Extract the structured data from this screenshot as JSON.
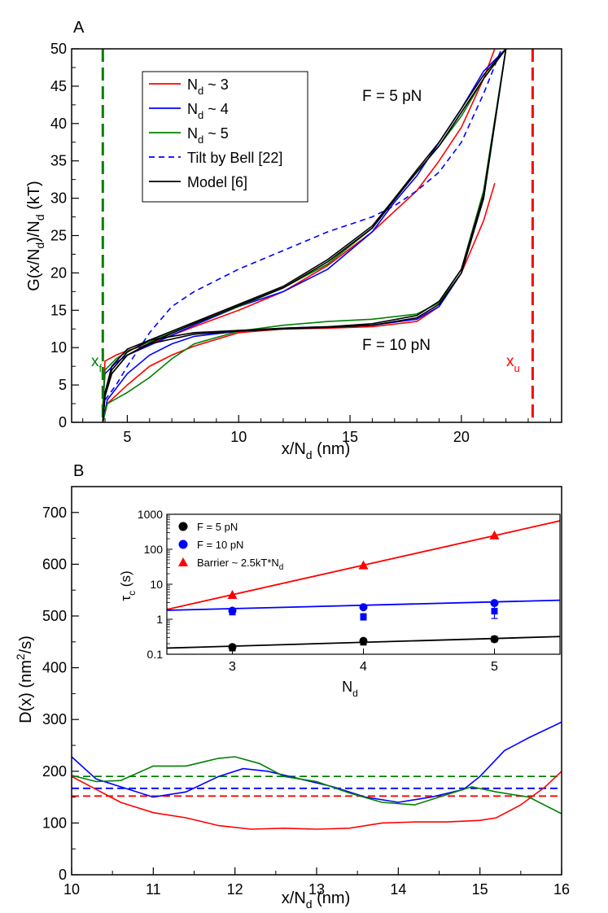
{
  "chart_data": [
    {
      "panel": "A",
      "type": "line",
      "xlabel": "x/N",
      "xlabel_sub": "d",
      "xlabel_unit": "(nm)",
      "ylabel": "G(x/N",
      "ylabel_sub": "d",
      "ylabel_mid": ")/N",
      "ylabel_sub2": "d",
      "ylabel_unit": "(kT)",
      "xlim": [
        2.5,
        24.5
      ],
      "ylim": [
        0,
        50
      ],
      "xticks": [
        5,
        10,
        15,
        20
      ],
      "yticks": [
        0,
        5,
        10,
        15,
        20,
        25,
        30,
        35,
        40,
        45,
        50
      ],
      "legend": [
        {
          "label": "N",
          "sub": "d",
          "suffix": " ~ 3",
          "color": "#ff0000",
          "dash": false
        },
        {
          "label": "N",
          "sub": "d",
          "suffix": " ~ 4",
          "color": "#0000ff",
          "dash": false
        },
        {
          "label": "N",
          "sub": "d",
          "suffix": " ~ 5",
          "color": "#008000",
          "dash": false
        },
        {
          "label": "Tilt by Bell [22]",
          "sub": "",
          "suffix": "",
          "color": "#0000ff",
          "dash": true
        },
        {
          "label": "Model [6]",
          "sub": "",
          "suffix": "",
          "color": "#000000",
          "dash": false
        }
      ],
      "annotations": {
        "f5": "F = 5 pN",
        "f10": "F = 10 pN",
        "xf": "x",
        "xf_sub": "f",
        "xu": "x",
        "xu_sub": "u"
      },
      "vlines": [
        {
          "x": 3.9,
          "color": "#008000"
        },
        {
          "x": 23.2,
          "color": "#ff0000"
        }
      ],
      "series": [
        {
          "name": "F5 Nd~3",
          "color": "#ff0000",
          "dash": false,
          "x": [
            3.9,
            4.0,
            4.5,
            5,
            6,
            8,
            10,
            12,
            14,
            16,
            18,
            19,
            20,
            21,
            21.5
          ],
          "y": [
            2,
            8.2,
            9,
            9.6,
            10.5,
            12.8,
            15,
            17.5,
            21,
            25.5,
            31,
            35,
            39.5,
            46,
            50
          ]
        },
        {
          "name": "F5 Nd~4",
          "color": "#0000ff",
          "dash": false,
          "x": [
            3.9,
            4.0,
            4.5,
            5,
            6,
            8,
            10,
            12,
            14,
            16,
            17,
            18,
            19,
            20,
            21,
            22
          ],
          "y": [
            2,
            6.5,
            8,
            9,
            10.3,
            13,
            15.5,
            17.5,
            20.5,
            25.5,
            29.5,
            33,
            37.5,
            42,
            47,
            50
          ]
        },
        {
          "name": "F5 Nd~5",
          "color": "#008000",
          "dash": false,
          "x": [
            3.9,
            4.0,
            4.5,
            5,
            6,
            8,
            10,
            12,
            14,
            16,
            17,
            18,
            19,
            20,
            21,
            22
          ],
          "y": [
            2,
            7,
            8.5,
            9.5,
            10.8,
            13.2,
            15.5,
            18,
            21.2,
            26,
            30,
            33.5,
            37,
            41,
            46,
            50
          ]
        },
        {
          "name": "F5 Tilt",
          "color": "#0000ff",
          "dash": true,
          "x": [
            4.0,
            4.5,
            5,
            6,
            7,
            8,
            10,
            12,
            14,
            16,
            17,
            18,
            19,
            20,
            21,
            21.8
          ],
          "y": [
            3,
            5,
            7.5,
            12,
            15.5,
            17.5,
            20.5,
            23,
            25.5,
            27.5,
            29,
            31,
            33.5,
            37.5,
            44,
            50
          ]
        },
        {
          "name": "F5 Model a",
          "color": "#000000",
          "dash": false,
          "x": [
            3.9,
            4.0,
            4.3,
            5,
            6,
            8,
            10,
            12,
            14,
            16,
            17,
            18,
            19,
            20,
            21,
            22
          ],
          "y": [
            0,
            3.5,
            6.5,
            9,
            10.6,
            13.2,
            15.6,
            18,
            21.5,
            26,
            29.8,
            33.5,
            37,
            41.5,
            46,
            50
          ]
        },
        {
          "name": "F5 Model b",
          "color": "#000000",
          "dash": false,
          "x": [
            3.9,
            4.0,
            4.3,
            5,
            6,
            8,
            10,
            12,
            14,
            16,
            17,
            18,
            19,
            20,
            21,
            22
          ],
          "y": [
            0,
            4,
            7,
            9.4,
            11,
            13.4,
            15.8,
            18.2,
            21.8,
            26.3,
            30,
            33.8,
            37.5,
            42,
            46.5,
            50
          ]
        },
        {
          "name": "F10 Nd~3",
          "color": "#ff0000",
          "dash": false,
          "x": [
            3.9,
            4.1,
            5,
            6,
            7,
            8,
            10,
            12,
            14,
            16,
            18,
            19,
            20,
            21,
            21.5
          ],
          "y": [
            0,
            2.5,
            5,
            7.5,
            9,
            10.2,
            12,
            12.5,
            12.6,
            12.8,
            13.5,
            15.5,
            20,
            27,
            32
          ]
        },
        {
          "name": "F10 Nd~4",
          "color": "#0000ff",
          "dash": false,
          "x": [
            3.9,
            4.1,
            5,
            6,
            7,
            8,
            10,
            12,
            14,
            16,
            18,
            19,
            20,
            21,
            22
          ],
          "y": [
            0,
            3,
            6.5,
            9,
            10.5,
            11.5,
            12.2,
            12.6,
            12.8,
            13,
            13.8,
            15.5,
            20,
            30,
            50
          ]
        },
        {
          "name": "F10 Nd~5",
          "color": "#008000",
          "dash": false,
          "x": [
            3.9,
            4.1,
            5,
            6,
            7,
            8,
            10,
            12,
            14,
            16,
            18,
            19,
            20,
            21,
            22
          ],
          "y": [
            0,
            2.5,
            4,
            6,
            8.5,
            10.5,
            12.2,
            13,
            13.5,
            13.8,
            14.5,
            16,
            20.5,
            31,
            50
          ]
        },
        {
          "name": "F10 Model a",
          "color": "#000000",
          "dash": false,
          "x": [
            3.9,
            4.0,
            4.3,
            5,
            6,
            8,
            10,
            12,
            14,
            16,
            18,
            19,
            20,
            21,
            22
          ],
          "y": [
            0,
            3.5,
            6.5,
            9,
            10.5,
            11.8,
            12.2,
            12.5,
            12.7,
            13,
            14,
            15.8,
            20,
            30,
            50
          ]
        },
        {
          "name": "F10 Model b",
          "color": "#000000",
          "dash": false,
          "x": [
            3.9,
            4.0,
            4.3,
            5,
            6,
            8,
            10,
            12,
            14,
            16,
            18,
            19,
            20,
            21,
            22
          ],
          "y": [
            0,
            4,
            7.5,
            9.8,
            11,
            12,
            12.3,
            12.6,
            12.8,
            13.2,
            14.3,
            16.2,
            20.5,
            30.5,
            50
          ]
        }
      ]
    },
    {
      "panel": "B",
      "type": "line",
      "xlabel": "x/N",
      "xlabel_sub": "d",
      "xlabel_unit": "(nm)",
      "ylabel": "D(x) (nm",
      "ylabel_sup": "2",
      "ylabel_unit": "/s)",
      "xlim": [
        10,
        16
      ],
      "ylim": [
        0,
        750
      ],
      "xticks": [
        10,
        11,
        12,
        13,
        14,
        15,
        16
      ],
      "yticks": [
        0,
        100,
        200,
        300,
        400,
        500,
        600,
        700
      ],
      "hlines": [
        {
          "y": 190,
          "color": "#008000"
        },
        {
          "y": 167,
          "color": "#0000ff"
        },
        {
          "y": 152,
          "color": "#ff0000"
        }
      ],
      "series": [
        {
          "name": "Nd~3",
          "color": "#ff0000",
          "x": [
            10,
            10.3,
            10.6,
            11,
            11.4,
            11.8,
            12.2,
            12.6,
            13,
            13.4,
            13.8,
            14.2,
            14.6,
            15,
            15.2,
            15.5,
            15.8,
            16
          ],
          "y": [
            190,
            165,
            140,
            120,
            110,
            95,
            88,
            90,
            88,
            90,
            100,
            102,
            102,
            105,
            110,
            135,
            170,
            200
          ]
        },
        {
          "name": "Nd~4",
          "color": "#0000ff",
          "x": [
            10,
            10.3,
            10.6,
            11,
            11.4,
            11.8,
            12.1,
            12.4,
            12.8,
            13.2,
            13.6,
            14,
            14.4,
            14.8,
            15,
            15.3,
            15.6,
            16
          ],
          "y": [
            228,
            185,
            170,
            150,
            160,
            190,
            205,
            200,
            185,
            170,
            150,
            140,
            150,
            165,
            190,
            240,
            265,
            295
          ]
        },
        {
          "name": "Nd~5",
          "color": "#008000",
          "x": [
            10,
            10.3,
            10.6,
            11,
            11.4,
            11.8,
            12,
            12.3,
            12.6,
            13,
            13.4,
            13.8,
            14.2,
            14.6,
            14.9,
            15.2,
            15.6,
            16
          ],
          "y": [
            192,
            180,
            182,
            210,
            210,
            225,
            228,
            215,
            190,
            180,
            158,
            140,
            135,
            155,
            170,
            160,
            150,
            118
          ]
        }
      ],
      "inset": {
        "type": "scatter",
        "xlabel": "N",
        "xlabel_sub": "d",
        "ylabel": "τ",
        "ylabel_sub": "c",
        "ylabel_unit": "(s)",
        "xlim": [
          2.5,
          5.5
        ],
        "ylim": [
          0.1,
          1000
        ],
        "xticks": [
          3,
          4,
          5
        ],
        "yticks": [
          0.1,
          1,
          10,
          100,
          1000
        ],
        "ytick_labels": [
          "0.1",
          "1",
          "10",
          "100",
          "1000"
        ],
        "legend": [
          {
            "label": "F = 5 pN",
            "color": "#000000",
            "marker": "circle"
          },
          {
            "label": "F = 10 pN",
            "color": "#0000ff",
            "marker": "circle"
          },
          {
            "label": "Barrier ~ 2.5kT*N",
            "sub": "d",
            "color": "#ff0000",
            "marker": "triangle"
          }
        ],
        "series": [
          {
            "name": "F = 5 pN",
            "color": "#000000",
            "marker": "circle",
            "x": [
              3,
              4,
              5
            ],
            "y": [
              0.16,
              0.24,
              0.27
            ]
          },
          {
            "name": "F = 5 pN (square)",
            "color": "#000000",
            "marker": "square",
            "x": [
              3,
              4,
              5
            ],
            "y": [
              0.15,
              0.22,
              0.27
            ]
          },
          {
            "name": "F = 10 pN",
            "color": "#0000ff",
            "marker": "circle",
            "x": [
              3,
              4,
              5
            ],
            "y": [
              1.75,
              2.2,
              2.9
            ]
          },
          {
            "name": "F = 10 pN (square)",
            "color": "#0000ff",
            "marker": "square",
            "x": [
              3,
              4,
              5
            ],
            "y": [
              1.6,
              1.2,
              1.7
            ]
          },
          {
            "name": "Barrier",
            "color": "#ff0000",
            "marker": "triangle",
            "x": [
              3,
              4,
              5
            ],
            "y": [
              5,
              35,
              250
            ]
          }
        ],
        "fits": [
          {
            "color": "#ff0000",
            "x": [
              2.5,
              5.5
            ],
            "y": [
              1.9,
              650
            ]
          },
          {
            "color": "#0000ff",
            "x": [
              2.5,
              5.5
            ],
            "y": [
              1.8,
              3.5
            ]
          },
          {
            "color": "#000000",
            "x": [
              2.5,
              5.5
            ],
            "y": [
              0.15,
              0.32
            ]
          }
        ]
      }
    }
  ]
}
